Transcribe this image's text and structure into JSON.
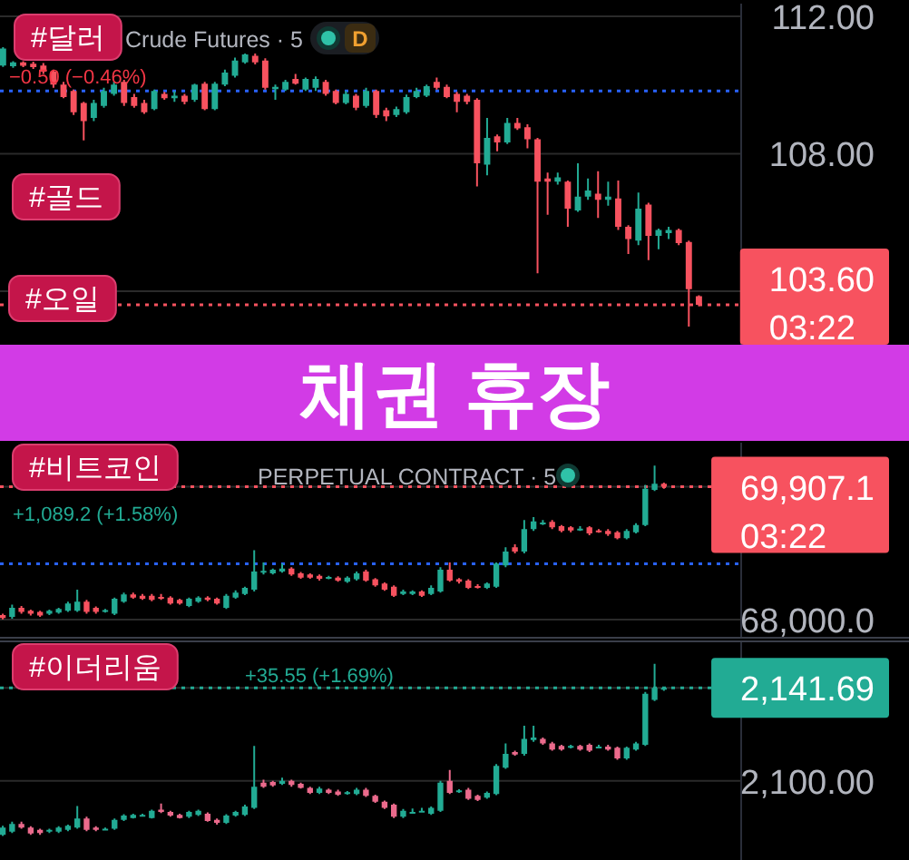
{
  "chart_data": [
    {
      "type": "candlestick",
      "title": "Crude Futures · 5",
      "categories": [
        null,
        null,
        null,
        null,
        null,
        null,
        null,
        null,
        null,
        null,
        null,
        null,
        null,
        null,
        null,
        null,
        null,
        null,
        null,
        null,
        null,
        null,
        null,
        null,
        null,
        null,
        null,
        null,
        null,
        null,
        null,
        null,
        null,
        null,
        null,
        null,
        null,
        null,
        null,
        null,
        null,
        null,
        null,
        null,
        null,
        null,
        null,
        null,
        null,
        null,
        null,
        null,
        null,
        null,
        null,
        null,
        null,
        null,
        null,
        null,
        null,
        null,
        null,
        null,
        null,
        null,
        null,
        null,
        null,
        null
      ],
      "ohlc": [
        [
          110.57,
          111.1,
          110.53,
          111.06
        ],
        [
          110.55,
          110.69,
          110.5,
          110.66
        ],
        [
          110.66,
          110.69,
          110.52,
          110.56
        ],
        [
          110.62,
          110.68,
          110.47,
          110.52
        ],
        [
          110.57,
          110.64,
          110.32,
          110.39
        ],
        [
          110.39,
          110.45,
          109.92,
          110.01
        ],
        [
          110.01,
          110.09,
          109.62,
          109.65
        ],
        [
          109.83,
          109.87,
          109.13,
          109.21
        ],
        [
          109.48,
          109.51,
          108.39,
          108.95
        ],
        [
          109.04,
          109.57,
          108.95,
          109.48
        ],
        [
          109.39,
          109.92,
          109.34,
          109.83
        ],
        [
          109.74,
          110.09,
          109.69,
          110.01
        ],
        [
          110.09,
          110.15,
          109.39,
          109.48
        ],
        [
          109.65,
          109.74,
          109.34,
          109.39
        ],
        [
          109.48,
          109.57,
          109.16,
          109.21
        ],
        [
          109.3,
          109.87,
          109.27,
          109.83
        ],
        [
          109.74,
          109.8,
          109.57,
          109.62
        ],
        [
          109.62,
          109.83,
          109.51,
          109.69
        ],
        [
          109.69,
          109.74,
          109.44,
          109.51
        ],
        [
          109.57,
          110.04,
          109.51,
          110.01
        ],
        [
          110.04,
          110.09,
          109.27,
          109.3
        ],
        [
          109.3,
          110.09,
          109.27,
          110.04
        ],
        [
          110.01,
          110.45,
          109.97,
          110.36
        ],
        [
          110.27,
          110.8,
          110.22,
          110.71
        ],
        [
          110.66,
          110.92,
          110.62,
          110.89
        ],
        [
          110.85,
          110.92,
          110.6,
          110.66
        ],
        [
          110.71,
          110.78,
          109.87,
          109.92
        ],
        [
          109.88,
          110.01,
          109.57,
          109.95
        ],
        [
          109.87,
          110.15,
          109.83,
          110.09
        ],
        [
          110.18,
          110.32,
          110.01,
          110.04
        ],
        [
          109.87,
          110.22,
          109.83,
          110.18
        ],
        [
          109.92,
          110.25,
          109.83,
          110.18
        ],
        [
          110.09,
          110.15,
          109.69,
          109.74
        ],
        [
          109.83,
          109.87,
          109.44,
          109.48
        ],
        [
          109.48,
          109.83,
          109.44,
          109.74
        ],
        [
          109.69,
          109.74,
          109.27,
          109.34
        ],
        [
          109.39,
          109.92,
          109.34,
          109.83
        ],
        [
          109.83,
          109.87,
          109.04,
          109.13
        ],
        [
          109.27,
          109.34,
          108.95,
          109.09
        ],
        [
          109.13,
          109.37,
          109.07,
          109.3
        ],
        [
          109.21,
          109.72,
          109.16,
          109.65
        ],
        [
          109.65,
          109.92,
          109.62,
          109.83
        ],
        [
          109.69,
          110.01,
          109.65,
          109.97
        ],
        [
          110.09,
          110.22,
          109.87,
          109.92
        ],
        [
          109.95,
          110.01,
          109.62,
          109.65
        ],
        [
          109.74,
          109.8,
          109.21,
          109.51
        ],
        [
          109.69,
          109.74,
          109.44,
          109.51
        ],
        [
          109.57,
          109.62,
          107.05,
          107.72
        ],
        [
          107.68,
          109.04,
          107.37,
          108.46
        ],
        [
          108.51,
          108.56,
          108.07,
          108.33
        ],
        [
          108.33,
          109.04,
          108.28,
          108.9
        ],
        [
          108.9,
          109.04,
          108.69,
          108.74
        ],
        [
          108.77,
          108.86,
          108.16,
          108.42
        ],
        [
          108.42,
          108.46,
          104.52,
          107.19
        ],
        [
          107.28,
          107.45,
          106.22,
          107.19
        ],
        [
          107.19,
          107.45,
          107.1,
          107.31
        ],
        [
          107.19,
          107.22,
          105.87,
          106.4
        ],
        [
          106.35,
          107.72,
          106.31,
          106.75
        ],
        [
          106.75,
          107.28,
          106.66,
          106.93
        ],
        [
          106.84,
          107.49,
          106.13,
          106.66
        ],
        [
          106.66,
          107.19,
          106.49,
          106.75
        ],
        [
          106.7,
          107.22,
          105.78,
          105.87
        ],
        [
          105.87,
          105.92,
          105.08,
          105.52
        ],
        [
          105.47,
          106.87,
          105.34,
          106.4
        ],
        [
          106.52,
          106.57,
          104.9,
          105.61
        ],
        [
          105.61,
          105.82,
          105.22,
          105.78
        ],
        [
          105.69,
          105.87,
          105.52,
          105.78
        ],
        [
          105.78,
          105.82,
          105.34,
          105.4
        ],
        [
          105.43,
          105.47,
          102.97,
          104.06
        ],
        [
          103.85,
          103.88,
          103.56,
          103.6
        ]
      ],
      "colors": [
        "#22ab94",
        "#22ab94",
        "#f7525f",
        "#f7525f",
        "#f7525f",
        "#f7525f",
        "#f7525f",
        "#f7525f",
        "#f7525f",
        "#22ab94",
        "#22ab94",
        "#22ab94",
        "#f7525f",
        "#f7525f",
        "#f7525f",
        "#22ab94",
        "#f7525f",
        "#22ab94",
        "#f7525f",
        "#22ab94",
        "#f7525f",
        "#22ab94",
        "#22ab94",
        "#22ab94",
        "#22ab94",
        "#f7525f",
        "#f7525f",
        "#22ab94",
        "#22ab94",
        "#f7525f",
        "#22ab94",
        "#22ab94",
        "#f7525f",
        "#f7525f",
        "#22ab94",
        "#f7525f",
        "#22ab94",
        "#f7525f",
        "#f7525f",
        "#22ab94",
        "#22ab94",
        "#22ab94",
        "#22ab94",
        "#f7525f",
        "#f7525f",
        "#f7525f",
        "#f7525f",
        "#f7525f",
        "#22ab94",
        "#f7525f",
        "#22ab94",
        "#f7525f",
        "#f7525f",
        "#f7525f",
        "#f7525f",
        "#22ab94",
        "#f7525f",
        "#22ab94",
        "#22ab94",
        "#f7525f",
        "#22ab94",
        "#f7525f",
        "#f7525f",
        "#22ab94",
        "#f7525f",
        "#22ab94",
        "#22ab94",
        "#f7525f",
        "#f7525f",
        "#f7525f"
      ],
      "ylim": [
        102.44,
        112.37
      ],
      "yticks": [
        {
          "value": 104,
          "label": null
        },
        {
          "value": 108,
          "label": "108.00"
        },
        {
          "value": 112,
          "label": "112.00"
        }
      ],
      "grid": "y",
      "tick_labels": "y",
      "ref_lines": [
        {
          "axis": "y",
          "value": 103.6,
          "label": "103.60",
          "color": "#f7525f",
          "line_style": "dotted"
        },
        {
          "axis": "y",
          "value": 109.83,
          "color": "#2962ff",
          "line_style": "dotted"
        }
      ],
      "annotations": [
        "#달러",
        "D",
        "−0.50 (−0.46%)",
        "#골드",
        "#오일",
        "03:22",
        "채권 휴장"
      ]
    },
    {
      "type": "candlestick",
      "title": "PERPETUAL CONTRACT · 5",
      "categories": [
        null,
        null,
        null,
        null,
        null,
        null,
        null,
        null,
        null,
        null,
        null,
        null,
        null,
        null,
        null,
        null,
        null,
        null,
        null,
        null,
        null,
        null,
        null,
        null,
        null,
        null,
        null,
        null,
        null,
        null,
        null,
        null,
        null,
        null,
        null,
        null,
        null,
        null,
        null,
        null,
        null,
        null,
        null,
        null,
        null,
        null,
        null,
        null,
        null,
        null,
        null,
        null,
        null,
        null,
        null,
        null,
        null,
        null,
        null,
        null,
        null,
        null,
        null,
        null,
        null,
        null,
        null,
        null,
        null,
        null,
        null,
        null
      ],
      "ohlc": [
        [
          68065,
          68083,
          68004,
          68022
        ],
        [
          68039,
          68213,
          68013,
          68169
        ],
        [
          68169,
          68195,
          68083,
          68109
        ],
        [
          68126,
          68143,
          68057,
          68083
        ],
        [
          68109,
          68126,
          68039,
          68057
        ],
        [
          68083,
          68143,
          68065,
          68126
        ],
        [
          68100,
          68169,
          68083,
          68152
        ],
        [
          68126,
          68256,
          68109,
          68230
        ],
        [
          68126,
          68430,
          68109,
          68256
        ],
        [
          68256,
          68282,
          68083,
          68109
        ],
        [
          68169,
          68187,
          68083,
          68109
        ],
        [
          68117,
          68152,
          68100,
          68135
        ],
        [
          68083,
          68317,
          68065,
          68300
        ],
        [
          68256,
          68386,
          68239,
          68360
        ],
        [
          68360,
          68386,
          68300,
          68317
        ],
        [
          68343,
          68369,
          68282,
          68300
        ],
        [
          68343,
          68369,
          68265,
          68282
        ],
        [
          68326,
          68369,
          68282,
          68308
        ],
        [
          68317,
          68334,
          68213,
          68230
        ],
        [
          68282,
          68300,
          68213,
          68230
        ],
        [
          68195,
          68317,
          68178,
          68300
        ],
        [
          68256,
          68334,
          68239,
          68317
        ],
        [
          68317,
          68334,
          68265,
          68282
        ],
        [
          68300,
          68317,
          68213,
          68230
        ],
        [
          68169,
          68369,
          68152,
          68343
        ],
        [
          68317,
          68421,
          68300,
          68386
        ],
        [
          68369,
          68473,
          68352,
          68456
        ],
        [
          68430,
          68995,
          68404,
          68690
        ],
        [
          68682,
          68821,
          68647,
          68700
        ],
        [
          68664,
          68734,
          68647,
          68716
        ],
        [
          68690,
          68803,
          68673,
          68734
        ],
        [
          68734,
          68751,
          68629,
          68647
        ],
        [
          68664,
          68682,
          68586,
          68603
        ],
        [
          68647,
          68664,
          68586,
          68603
        ],
        [
          68629,
          68647,
          68560,
          68586
        ],
        [
          68595,
          68629,
          68578,
          68612
        ],
        [
          68603,
          68621,
          68543,
          68560
        ],
        [
          68543,
          68621,
          68526,
          68603
        ],
        [
          68578,
          68690,
          68560,
          68664
        ],
        [
          68690,
          68716,
          68543,
          68560
        ],
        [
          68578,
          68595,
          68473,
          68491
        ],
        [
          68517,
          68535,
          68413,
          68430
        ],
        [
          68473,
          68491,
          68326,
          68343
        ],
        [
          68369,
          68430,
          68352,
          68404
        ],
        [
          68369,
          68421,
          68352,
          68404
        ],
        [
          68404,
          68421,
          68326,
          68343
        ],
        [
          68369,
          68491,
          68352,
          68456
        ],
        [
          68404,
          68751,
          68386,
          68716
        ],
        [
          68716,
          68821,
          68543,
          68560
        ],
        [
          68578,
          68595,
          68517,
          68543
        ],
        [
          68560,
          68578,
          68438,
          68456
        ],
        [
          68482,
          68508,
          68447,
          68465
        ],
        [
          68456,
          68535,
          68438,
          68517
        ],
        [
          68473,
          68821,
          68456,
          68803
        ],
        [
          68777,
          69038,
          68751,
          68977
        ],
        [
          69038,
          69082,
          68951,
          68977
        ],
        [
          68977,
          69429,
          68951,
          69298
        ],
        [
          69298,
          69472,
          69272,
          69411
        ],
        [
          69377,
          69429,
          69359,
          69394
        ],
        [
          69403,
          69429,
          69298,
          69324
        ],
        [
          69342,
          69359,
          69255,
          69272
        ],
        [
          69324,
          69342,
          69255,
          69281
        ],
        [
          69290,
          69342,
          69272,
          69307
        ],
        [
          69324,
          69342,
          69211,
          69237
        ],
        [
          69281,
          69298,
          69246,
          69264
        ],
        [
          69272,
          69298,
          69203,
          69229
        ],
        [
          69255,
          69272,
          69151,
          69168
        ],
        [
          69168,
          69298,
          69151,
          69272
        ],
        [
          69255,
          69385,
          69237,
          69359
        ],
        [
          69359,
          69933,
          69342,
          69880
        ],
        [
          69863,
          70210,
          69846,
          69950
        ],
        [
          69950,
          69967,
          69880,
          69907.1
        ]
      ],
      "colors": [
        "#f7525f",
        "#22ab94",
        "#f7525f",
        "#f7525f",
        "#f7525f",
        "#22ab94",
        "#22ab94",
        "#22ab94",
        "#22ab94",
        "#f7525f",
        "#f7525f",
        "#22ab94",
        "#22ab94",
        "#22ab94",
        "#f7525f",
        "#f7525f",
        "#f7525f",
        "#f7525f",
        "#f7525f",
        "#f7525f",
        "#22ab94",
        "#22ab94",
        "#f7525f",
        "#f7525f",
        "#22ab94",
        "#22ab94",
        "#22ab94",
        "#22ab94",
        "#22ab94",
        "#22ab94",
        "#22ab94",
        "#f7525f",
        "#f7525f",
        "#f7525f",
        "#f7525f",
        "#22ab94",
        "#f7525f",
        "#22ab94",
        "#22ab94",
        "#f7525f",
        "#f7525f",
        "#f7525f",
        "#f7525f",
        "#22ab94",
        "#22ab94",
        "#f7525f",
        "#22ab94",
        "#22ab94",
        "#f7525f",
        "#f7525f",
        "#f7525f",
        "#f7525f",
        "#22ab94",
        "#22ab94",
        "#22ab94",
        "#f7525f",
        "#22ab94",
        "#22ab94",
        "#22ab94",
        "#f7525f",
        "#f7525f",
        "#f7525f",
        "#22ab94",
        "#f7525f",
        "#f7525f",
        "#f7525f",
        "#f7525f",
        "#22ab94",
        "#22ab94",
        "#22ab94",
        "#22ab94",
        "#f7525f"
      ],
      "ylim": [
        67726,
        70540
      ],
      "yticks": [
        {
          "value": 68000,
          "label": "68,000.0"
        },
        {
          "value": 69907.1,
          "label": "69,907.1"
        }
      ],
      "grid": "y",
      "tick_labels": "y",
      "ref_lines": [
        {
          "axis": "y",
          "value": 69907.1,
          "color": "#f7525f",
          "line_style": "dotted"
        },
        {
          "axis": "y",
          "value": 68800,
          "color": "#2962ff",
          "line_style": "dotted"
        }
      ],
      "annotations": [
        "#비트코인",
        "+1,089.2 (+1.58%)",
        "03:22"
      ]
    },
    {
      "type": "candlestick",
      "categories": [
        null,
        null,
        null,
        null,
        null,
        null,
        null,
        null,
        null,
        null,
        null,
        null,
        null,
        null,
        null,
        null,
        null,
        null,
        null,
        null,
        null,
        null,
        null,
        null,
        null,
        null,
        null,
        null,
        null,
        null,
        null,
        null,
        null,
        null,
        null,
        null,
        null,
        null,
        null,
        null,
        null,
        null,
        null,
        null,
        null,
        null,
        null,
        null,
        null,
        null,
        null,
        null,
        null,
        null,
        null,
        null,
        null,
        null,
        null,
        null,
        null,
        null,
        null,
        null,
        null,
        null,
        null,
        null,
        null,
        null,
        null,
        null
      ],
      "ohlc": [
        [
          2075.8,
          2079.9,
          2075.3,
          2079.0
        ],
        [
          2077.2,
          2081.7,
          2076.6,
          2080.7
        ],
        [
          2080.7,
          2081.7,
          2078.5,
          2079.0
        ],
        [
          2079.0,
          2079.6,
          2075.8,
          2076.4
        ],
        [
          2078.0,
          2078.5,
          2075.8,
          2076.6
        ],
        [
          2077.4,
          2078.5,
          2076.6,
          2078.0
        ],
        [
          2077.2,
          2079.6,
          2076.6,
          2079.0
        ],
        [
          2078.0,
          2080.4,
          2077.4,
          2079.9
        ],
        [
          2079.0,
          2088.7,
          2078.5,
          2083.1
        ],
        [
          2083.1,
          2083.9,
          2077.4,
          2078.0
        ],
        [
          2079.0,
          2079.6,
          2077.4,
          2078.0
        ],
        [
          2078.2,
          2079.0,
          2077.7,
          2078.5
        ],
        [
          2078.5,
          2083.1,
          2078.0,
          2082.5
        ],
        [
          2082.5,
          2085.0,
          2082.0,
          2084.4
        ],
        [
          2083.3,
          2085.2,
          2083.1,
          2084.7
        ],
        [
          2084.4,
          2085.2,
          2083.9,
          2084.7
        ],
        [
          2083.3,
          2087.1,
          2083.1,
          2086.6
        ],
        [
          2087.1,
          2089.8,
          2085.5,
          2086.0
        ],
        [
          2086.0,
          2086.6,
          2083.9,
          2084.4
        ],
        [
          2084.7,
          2085.2,
          2083.1,
          2083.3
        ],
        [
          2083.9,
          2086.6,
          2083.3,
          2086.0
        ],
        [
          2084.7,
          2087.1,
          2084.2,
          2086.6
        ],
        [
          2085.2,
          2085.8,
          2081.7,
          2082.0
        ],
        [
          2082.5,
          2083.1,
          2080.4,
          2081.2
        ],
        [
          2081.2,
          2085.0,
          2080.7,
          2084.4
        ],
        [
          2084.4,
          2086.6,
          2083.9,
          2086.0
        ],
        [
          2084.7,
          2089.3,
          2084.2,
          2088.5
        ],
        [
          2087.9,
          2115.6,
          2087.4,
          2097.3
        ],
        [
          2099.2,
          2100.5,
          2096.8,
          2097.3
        ],
        [
          2099.5,
          2100.0,
          2097.3,
          2097.9
        ],
        [
          2098.7,
          2101.4,
          2098.1,
          2100.0
        ],
        [
          2100.0,
          2100.5,
          2097.3,
          2098.1
        ],
        [
          2098.7,
          2099.2,
          2096.5,
          2096.8
        ],
        [
          2096.8,
          2097.3,
          2094.1,
          2094.6
        ],
        [
          2094.6,
          2097.3,
          2094.1,
          2096.5
        ],
        [
          2096.0,
          2096.5,
          2094.1,
          2094.6
        ],
        [
          2095.2,
          2096.0,
          2093.3,
          2093.8
        ],
        [
          2094.4,
          2095.4,
          2093.8,
          2094.9
        ],
        [
          2094.1,
          2096.8,
          2093.6,
          2096.0
        ],
        [
          2096.0,
          2096.8,
          2092.8,
          2093.3
        ],
        [
          2093.3,
          2093.8,
          2090.1,
          2090.6
        ],
        [
          2090.6,
          2091.1,
          2087.4,
          2087.9
        ],
        [
          2089.3,
          2089.8,
          2083.3,
          2083.9
        ],
        [
          2083.9,
          2087.4,
          2083.3,
          2086.6
        ],
        [
          2085.8,
          2087.6,
          2085.2,
          2086.0
        ],
        [
          2086.3,
          2087.9,
          2085.8,
          2086.6
        ],
        [
          2085.2,
          2088.5,
          2084.7,
          2087.9
        ],
        [
          2086.6,
          2100.0,
          2086.0,
          2099.2
        ],
        [
          2100.0,
          2104.9,
          2094.1,
          2094.6
        ],
        [
          2095.2,
          2096.2,
          2094.6,
          2095.7
        ],
        [
          2096.0,
          2096.8,
          2091.4,
          2091.9
        ],
        [
          2093.3,
          2093.8,
          2090.9,
          2091.4
        ],
        [
          2092.5,
          2095.2,
          2091.9,
          2094.6
        ],
        [
          2094.1,
          2107.5,
          2093.6,
          2106.7
        ],
        [
          2105.9,
          2116.7,
          2105.4,
          2112.1
        ],
        [
          2112.9,
          2113.5,
          2111.3,
          2111.8
        ],
        [
          2112.1,
          2124.7,
          2111.3,
          2118.8
        ],
        [
          2118.3,
          2124.7,
          2117.5,
          2119.4
        ],
        [
          2118.8,
          2119.4,
          2116.1,
          2116.7
        ],
        [
          2116.7,
          2117.5,
          2113.5,
          2114.0
        ],
        [
          2115.6,
          2116.1,
          2113.5,
          2114.0
        ],
        [
          2115.1,
          2116.1,
          2114.5,
          2115.6
        ],
        [
          2115.6,
          2116.1,
          2113.5,
          2114.0
        ],
        [
          2116.1,
          2116.7,
          2112.9,
          2113.5
        ],
        [
          2115.1,
          2116.1,
          2114.5,
          2115.3
        ],
        [
          2115.3,
          2116.1,
          2113.5,
          2114.0
        ],
        [
          2114.8,
          2115.3,
          2109.4,
          2110.0
        ],
        [
          2110.0,
          2115.3,
          2109.4,
          2114.8
        ],
        [
          2114.0,
          2117.5,
          2113.5,
          2116.7
        ],
        [
          2116.1,
          2139.8,
          2115.6,
          2139.0
        ],
        [
          2136.3,
          2152.4,
          2135.8,
          2141.7
        ],
        [
          2140.9,
          2141.9,
          2140.3,
          2141.69
        ]
      ],
      "colors": [
        "#22ab94",
        "#22ab94",
        "#eb6a8c",
        "#eb6a8c",
        "#eb6a8c",
        "#22ab94",
        "#22ab94",
        "#22ab94",
        "#22ab94",
        "#eb6a8c",
        "#eb6a8c",
        "#22ab94",
        "#22ab94",
        "#22ab94",
        "#22ab94",
        "#22ab94",
        "#22ab94",
        "#eb6a8c",
        "#eb6a8c",
        "#eb6a8c",
        "#22ab94",
        "#22ab94",
        "#eb6a8c",
        "#eb6a8c",
        "#22ab94",
        "#22ab94",
        "#22ab94",
        "#22ab94",
        "#eb6a8c",
        "#eb6a8c",
        "#22ab94",
        "#eb6a8c",
        "#eb6a8c",
        "#eb6a8c",
        "#22ab94",
        "#eb6a8c",
        "#eb6a8c",
        "#22ab94",
        "#22ab94",
        "#eb6a8c",
        "#eb6a8c",
        "#eb6a8c",
        "#eb6a8c",
        "#22ab94",
        "#22ab94",
        "#22ab94",
        "#22ab94",
        "#22ab94",
        "#eb6a8c",
        "#22ab94",
        "#eb6a8c",
        "#eb6a8c",
        "#22ab94",
        "#22ab94",
        "#22ab94",
        "#eb6a8c",
        "#22ab94",
        "#22ab94",
        "#eb6a8c",
        "#eb6a8c",
        "#eb6a8c",
        "#22ab94",
        "#eb6a8c",
        "#eb6a8c",
        "#22ab94",
        "#eb6a8c",
        "#eb6a8c",
        "#22ab94",
        "#22ab94",
        "#22ab94",
        "#22ab94",
        "#22ab94"
      ],
      "ylim": [
        2064.5,
        2162.9
      ],
      "yticks": [
        {
          "value": 2100,
          "label": "2,100.00"
        },
        {
          "value": 2141.69,
          "label": "2,141.69"
        }
      ],
      "grid": "y",
      "tick_labels": "y",
      "ref_lines": [
        {
          "axis": "y",
          "value": 2141.69,
          "color": "#22ab94",
          "line_style": "dotted"
        }
      ],
      "annotations": [
        "#이더리움",
        "+35.55 (+1.69%)"
      ]
    }
  ]
}
